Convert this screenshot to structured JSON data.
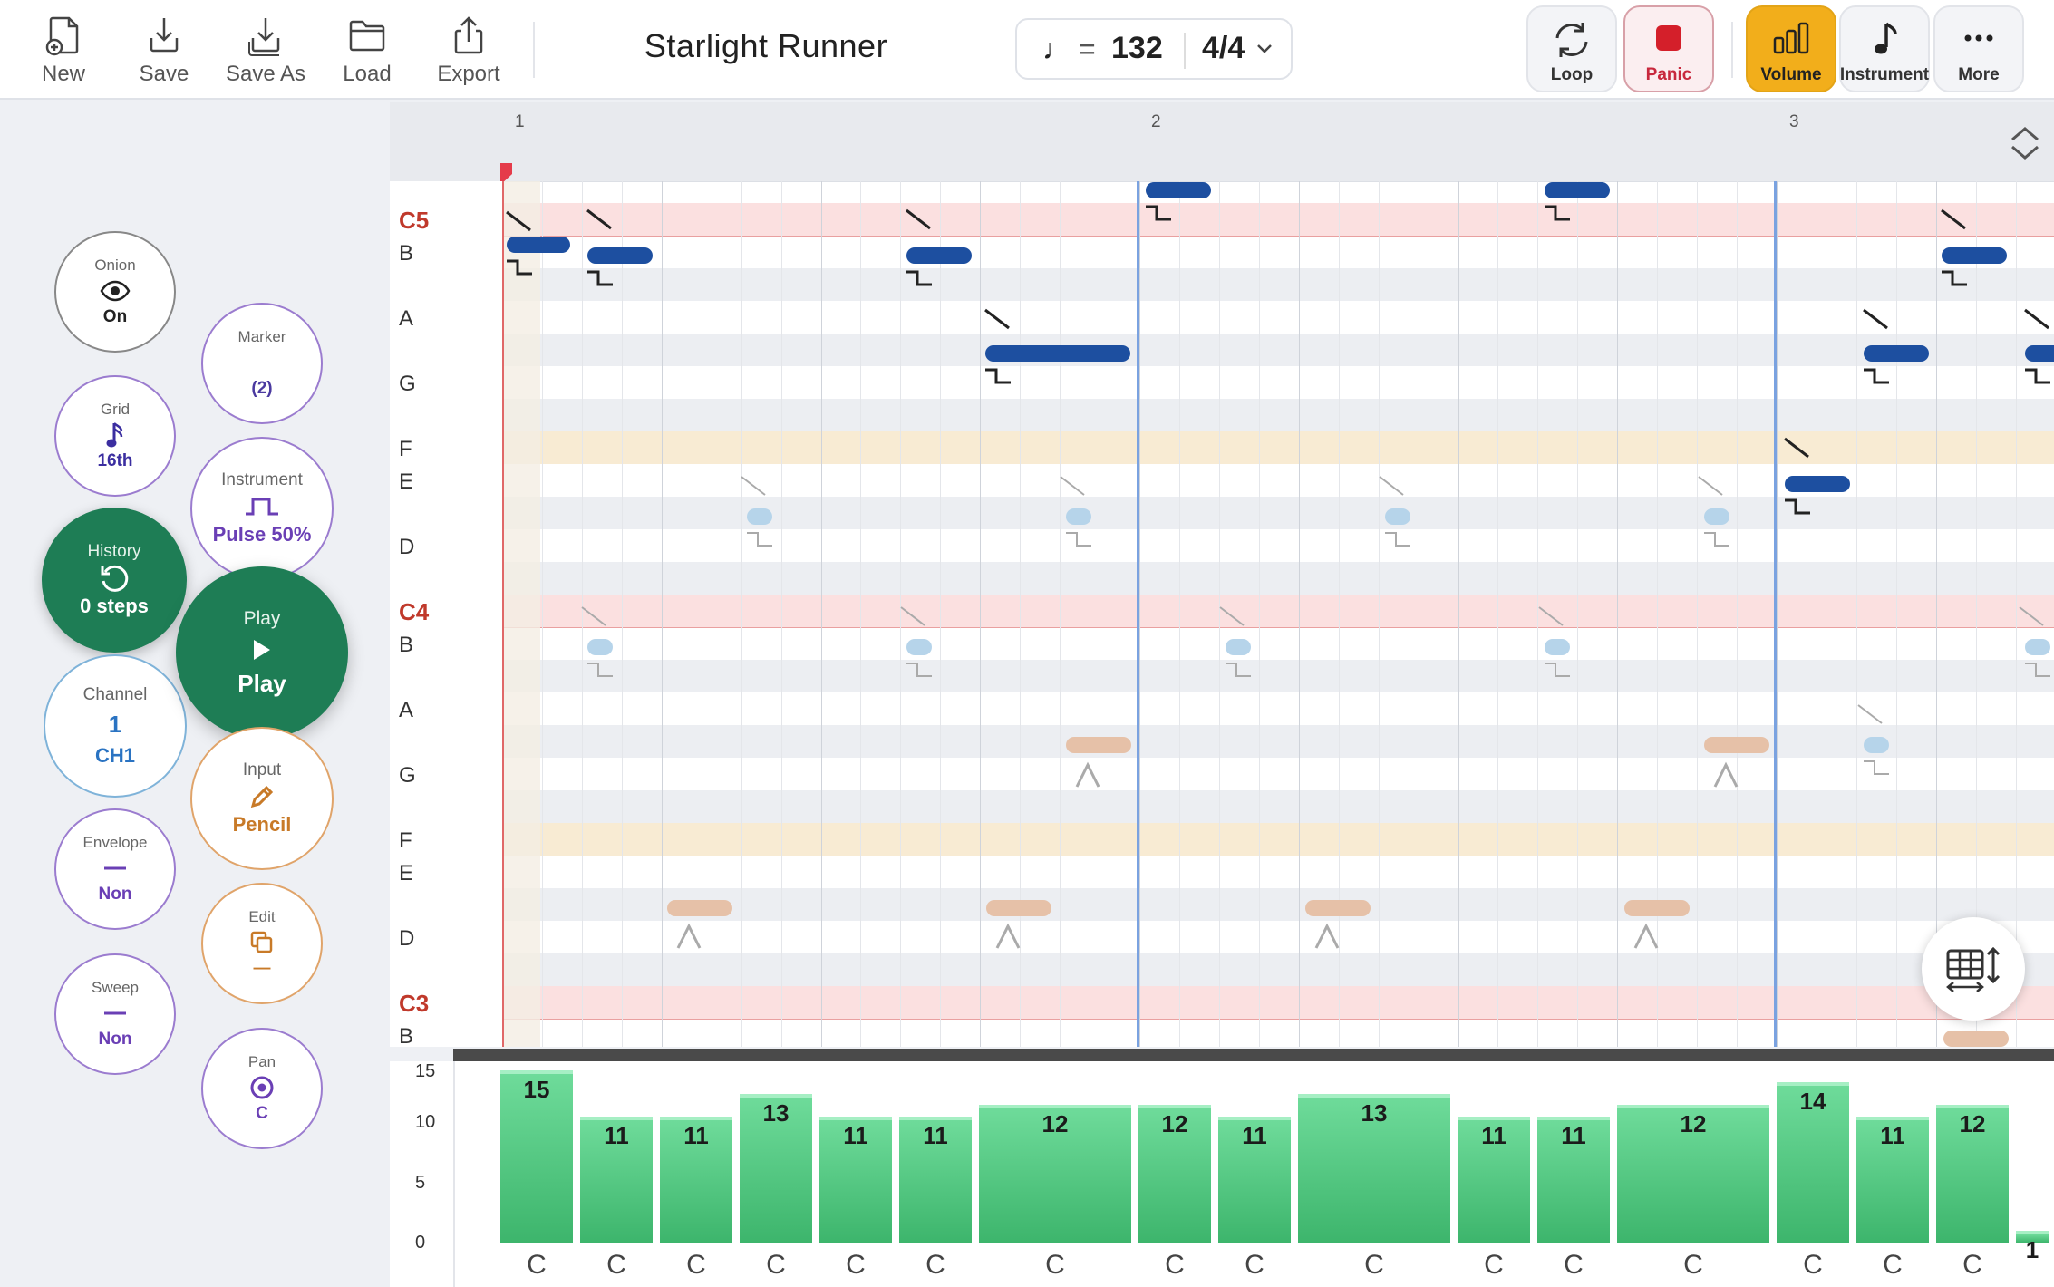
{
  "toolbar": {
    "file_buttons": [
      {
        "label": "New",
        "icon": "new-file-icon"
      },
      {
        "label": "Save",
        "icon": "save-icon"
      },
      {
        "label": "Save As",
        "icon": "save-as-icon"
      },
      {
        "label": "Load",
        "icon": "folder-icon"
      },
      {
        "label": "Export",
        "icon": "export-icon"
      }
    ],
    "song_title": "Starlight Runner",
    "tempo": {
      "note_symbol": "♩",
      "equals": "=",
      "bpm": "132",
      "time_signature": "4/4"
    },
    "right_buttons": [
      {
        "label": "Loop",
        "icon": "loop-icon"
      },
      {
        "label": "Panic",
        "icon": "stop-icon"
      },
      {
        "label": "Volume",
        "icon": "volume-bars-icon"
      },
      {
        "label": "Instrument",
        "icon": "music-note-icon"
      },
      {
        "label": "More",
        "icon": "more-dots-icon"
      }
    ]
  },
  "side": {
    "onion": {
      "label": "Onion",
      "value": "On"
    },
    "marker": {
      "label": "Marker",
      "value": "(2)"
    },
    "grid": {
      "label": "Grid",
      "value": "16th"
    },
    "instrument": {
      "label": "Instrument",
      "value": "Pulse 50%"
    },
    "history": {
      "label": "History",
      "value": "0 steps"
    },
    "play": {
      "label": "Play",
      "value": "Play"
    },
    "channel": {
      "label": "Channel",
      "number": "1",
      "value": "CH1"
    },
    "input": {
      "label": "Input",
      "value": "Pencil"
    },
    "envelope": {
      "label": "Envelope",
      "value": "Non"
    },
    "edit": {
      "label": "Edit",
      "value": "—"
    },
    "sweep": {
      "label": "Sweep",
      "value": "Non"
    },
    "pan": {
      "label": "Pan",
      "value": "C"
    }
  },
  "ruler": {
    "bars": [
      "1",
      "2",
      "3"
    ]
  },
  "pitch_labels": [
    "C5",
    "B",
    "A",
    "G",
    "F",
    "E",
    "D",
    "C4",
    "B",
    "A",
    "G",
    "F",
    "E",
    "D",
    "C3",
    "B"
  ],
  "velocity": {
    "ticks": [
      "15",
      "10",
      "5",
      "0"
    ],
    "columns": [
      {
        "value": "15",
        "note": "C"
      },
      {
        "value": "11",
        "note": "C"
      },
      {
        "value": "11",
        "note": "C"
      },
      {
        "value": "13",
        "note": "C"
      },
      {
        "value": "11",
        "note": "C"
      },
      {
        "value": "11",
        "note": "C"
      },
      {
        "value": "12",
        "note": "C"
      },
      {
        "value": "12",
        "note": "C"
      },
      {
        "value": "11",
        "note": "C"
      },
      {
        "value": "13",
        "note": "C"
      },
      {
        "value": "11",
        "note": "C"
      },
      {
        "value": "11",
        "note": "C"
      },
      {
        "value": "12",
        "note": "C"
      },
      {
        "value": "14",
        "note": "C"
      },
      {
        "value": "11",
        "note": "C"
      },
      {
        "value": "12",
        "note": "C"
      },
      {
        "value": "1",
        "note": ""
      }
    ]
  },
  "colors": {
    "accent_green": "#1e7d55",
    "note_blue": "#1d4fa0",
    "note_light_blue": "#b6d4ea",
    "note_peach": "#e6c1a8",
    "panic_red": "#c8283d",
    "volume_amber": "#f2ae1b",
    "c_row": "#fbe0e0",
    "f_row": "#f8ebd3"
  }
}
